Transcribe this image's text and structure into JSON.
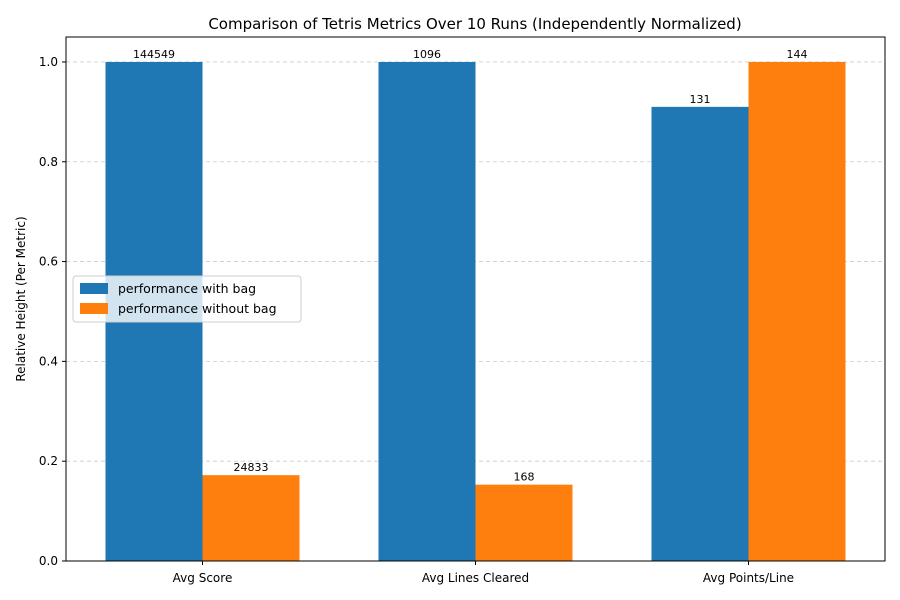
{
  "chart_data": {
    "type": "bar",
    "title": "Comparison of Tetris Metrics Over 10 Runs (Independently Normalized)",
    "xlabel": "",
    "ylabel": "Relative Height (Per Metric)",
    "categories": [
      "Avg Score",
      "Avg Lines Cleared",
      "Avg Points/Line"
    ],
    "ylim": [
      0,
      1.05
    ],
    "yticks": [
      0.0,
      0.2,
      0.4,
      0.6,
      0.8,
      1.0
    ],
    "ytick_labels": [
      "0.0",
      "0.2",
      "0.4",
      "0.6",
      "0.8",
      "1.0"
    ],
    "grid": "y-dashed",
    "legend_position": "center-left",
    "series": [
      {
        "name": "performance with bag",
        "color": "#1f77b4",
        "values": [
          1.0,
          1.0,
          0.91
        ],
        "labels": [
          "144549",
          "1096",
          "131"
        ]
      },
      {
        "name": "performance without bag",
        "color": "#ff7f0e",
        "values": [
          0.172,
          0.153,
          1.0
        ],
        "labels": [
          "24833",
          "168",
          "144"
        ]
      }
    ]
  }
}
